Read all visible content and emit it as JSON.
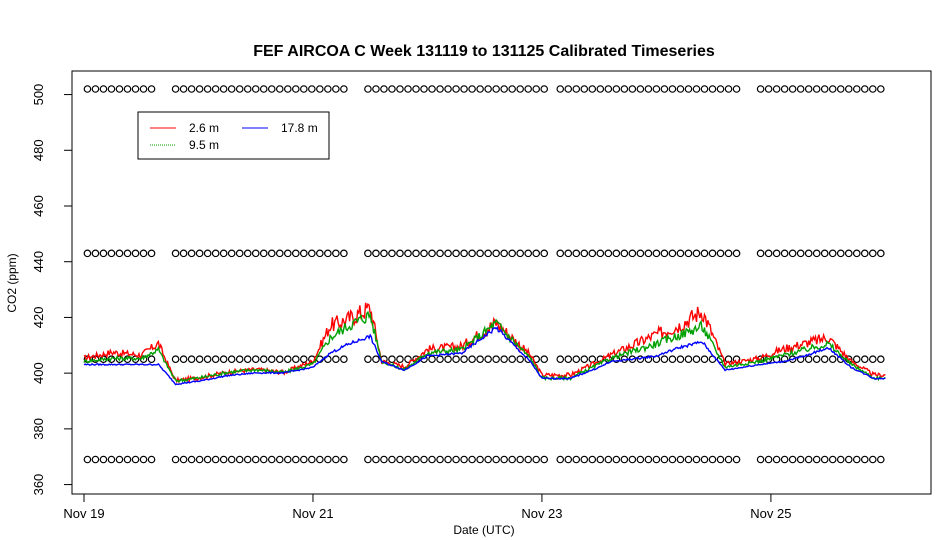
{
  "chart_data": {
    "type": "line",
    "title": "FEF AIRCOA C  Week 131119 to 131125  Calibrated Timeseries",
    "xlabel": "Date (UTC)",
    "ylabel": "CO2 (ppm)",
    "x_ticks": [
      "Nov 19",
      "Nov 21",
      "Nov 23",
      "Nov 25"
    ],
    "y_ticks": [
      360,
      380,
      400,
      420,
      440,
      460,
      480,
      500
    ],
    "x_range_days": [
      0,
      7
    ],
    "ylim": [
      357,
      506
    ],
    "grid": false,
    "legend": {
      "placement": "top-left",
      "entries": [
        "2.6 m",
        "9.5 m",
        "17.8 m"
      ]
    },
    "series": [
      {
        "name": "2.6 m",
        "color": "#ff0000",
        "x": [
          0,
          0.25,
          0.5,
          0.65,
          0.8,
          1.0,
          1.25,
          1.5,
          1.75,
          2.0,
          2.15,
          2.3,
          2.5,
          2.6,
          2.8,
          3.0,
          3.3,
          3.6,
          3.9,
          4.0,
          4.25,
          4.5,
          4.6,
          5.0,
          5.2,
          5.4,
          5.6,
          5.9,
          6.1,
          6.3,
          6.5,
          6.7,
          6.9,
          7.0
        ],
        "values": [
          405,
          407,
          406,
          410,
          397,
          398,
          400,
          401,
          400,
          404,
          416,
          418,
          422,
          404,
          402,
          408,
          409,
          417,
          406,
          399,
          399,
          404,
          406,
          413,
          416,
          421,
          403,
          405,
          408,
          410,
          412,
          404,
          399,
          399
        ]
      },
      {
        "name": "9.5 m",
        "color": "#00a000",
        "x": [
          0,
          0.25,
          0.5,
          0.65,
          0.8,
          1.0,
          1.25,
          1.5,
          1.75,
          2.0,
          2.15,
          2.3,
          2.5,
          2.6,
          2.8,
          3.0,
          3.3,
          3.6,
          3.9,
          4.0,
          4.25,
          4.5,
          4.6,
          5.0,
          5.2,
          5.4,
          5.6,
          5.9,
          6.1,
          6.3,
          6.5,
          6.7,
          6.9,
          7.0
        ],
        "values": [
          404,
          405,
          405,
          408,
          397,
          398,
          400,
          401,
          400,
          403,
          412,
          416,
          420,
          404,
          401,
          407,
          408,
          417,
          405,
          398,
          398,
          403,
          405,
          410,
          413,
          416,
          402,
          404,
          406,
          408,
          410,
          403,
          398,
          398
        ]
      },
      {
        "name": "17.8 m",
        "color": "#0000ff",
        "x": [
          0,
          0.25,
          0.5,
          0.65,
          0.8,
          1.0,
          1.25,
          1.5,
          1.75,
          2.0,
          2.15,
          2.3,
          2.5,
          2.6,
          2.8,
          3.0,
          3.3,
          3.6,
          3.9,
          4.0,
          4.25,
          4.5,
          4.6,
          5.0,
          5.2,
          5.4,
          5.6,
          5.9,
          6.1,
          6.3,
          6.5,
          6.7,
          6.9,
          7.0
        ],
        "values": [
          403,
          403,
          403,
          403,
          396,
          397,
          399,
          400,
          400,
          402,
          407,
          410,
          413,
          404,
          401,
          406,
          407,
          416,
          404,
          398,
          398,
          402,
          404,
          406,
          409,
          411,
          401,
          403,
          404,
          406,
          409,
          402,
          398,
          398
        ]
      }
    ],
    "reference_points": {
      "marker": "circle",
      "levels": [
        369,
        405,
        443,
        502
      ],
      "x_start": 0.03,
      "x_end": 7.0,
      "spacing_days": 0.07
    }
  }
}
